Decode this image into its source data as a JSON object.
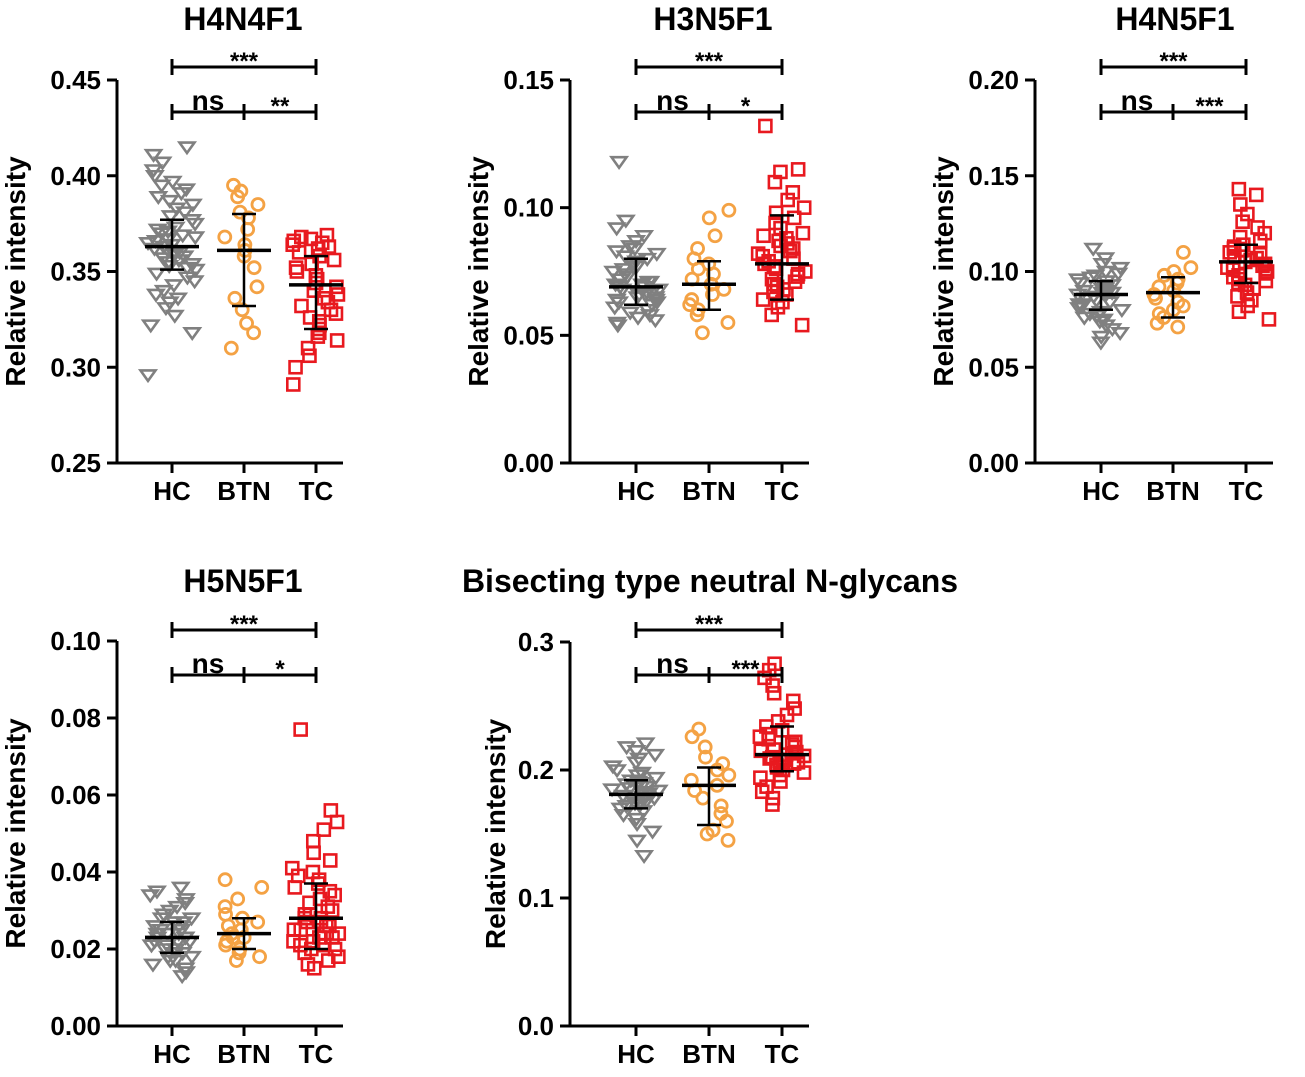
{
  "colors": {
    "HC": "#808080",
    "BTN": "#f4a244",
    "TC": "#e8191f",
    "axis": "#000000"
  },
  "chart_data": [
    {
      "type": "scatter",
      "title": "H4N4F1",
      "ylabel": "Relative intensity",
      "categories": [
        "HC",
        "BTN",
        "TC"
      ],
      "ylim": [
        0.25,
        0.45
      ],
      "yticks": [
        0.25,
        0.3,
        0.35,
        0.4,
        0.45
      ],
      "tick_labels": [
        "0.25",
        "0.30",
        "0.35",
        "0.40",
        "0.45"
      ],
      "series": [
        {
          "name": "HC",
          "marker": "triangle-down",
          "mean": 0.363,
          "sd_low": 0.351,
          "sd_high": 0.377,
          "points": [
            0.296,
            0.318,
            0.322,
            0.327,
            0.331,
            0.334,
            0.336,
            0.338,
            0.34,
            0.343,
            0.345,
            0.347,
            0.349,
            0.351,
            0.352,
            0.353,
            0.354,
            0.355,
            0.356,
            0.357,
            0.358,
            0.359,
            0.36,
            0.361,
            0.362,
            0.363,
            0.364,
            0.365,
            0.366,
            0.367,
            0.368,
            0.369,
            0.37,
            0.371,
            0.372,
            0.373,
            0.375,
            0.377,
            0.379,
            0.381,
            0.383,
            0.385,
            0.387,
            0.389,
            0.391,
            0.393,
            0.395,
            0.397,
            0.4,
            0.403,
            0.407,
            0.411,
            0.415
          ]
        },
        {
          "name": "BTN",
          "marker": "circle",
          "mean": 0.361,
          "sd_low": 0.332,
          "sd_high": 0.38,
          "points": [
            0.31,
            0.318,
            0.323,
            0.33,
            0.336,
            0.342,
            0.352,
            0.358,
            0.361,
            0.364,
            0.368,
            0.372,
            0.378,
            0.381,
            0.385,
            0.389,
            0.392,
            0.395
          ]
        },
        {
          "name": "TC",
          "marker": "square",
          "mean": 0.343,
          "sd_low": 0.32,
          "sd_high": 0.358,
          "points": [
            0.291,
            0.3,
            0.306,
            0.31,
            0.314,
            0.316,
            0.318,
            0.32,
            0.322,
            0.324,
            0.326,
            0.328,
            0.33,
            0.332,
            0.334,
            0.336,
            0.338,
            0.34,
            0.342,
            0.344,
            0.346,
            0.348,
            0.35,
            0.352,
            0.354,
            0.356,
            0.358,
            0.36,
            0.362,
            0.363,
            0.364,
            0.365,
            0.366,
            0.367,
            0.368,
            0.369
          ]
        }
      ],
      "brackets": [
        {
          "from": "HC",
          "to": "TC",
          "label": "***",
          "level": 2
        },
        {
          "from": "HC",
          "to": "BTN",
          "label": "ns",
          "level": 1
        },
        {
          "from": "BTN",
          "to": "TC",
          "label": "**",
          "level": 1
        }
      ]
    },
    {
      "type": "scatter",
      "title": "H3N5F1",
      "ylabel": "Relative intensity",
      "categories": [
        "HC",
        "BTN",
        "TC"
      ],
      "ylim": [
        0.0,
        0.15
      ],
      "yticks": [
        0.0,
        0.05,
        0.1,
        0.15
      ],
      "tick_labels": [
        "0.00",
        "0.05",
        "0.10",
        "0.15"
      ],
      "series": [
        {
          "name": "HC",
          "marker": "triangle-down",
          "mean": 0.069,
          "sd_low": 0.062,
          "sd_high": 0.08,
          "points": [
            0.054,
            0.055,
            0.056,
            0.057,
            0.058,
            0.059,
            0.06,
            0.061,
            0.062,
            0.063,
            0.063,
            0.064,
            0.064,
            0.065,
            0.065,
            0.066,
            0.066,
            0.067,
            0.067,
            0.068,
            0.068,
            0.069,
            0.069,
            0.07,
            0.07,
            0.071,
            0.071,
            0.072,
            0.073,
            0.074,
            0.075,
            0.076,
            0.077,
            0.078,
            0.079,
            0.08,
            0.081,
            0.082,
            0.083,
            0.084,
            0.085,
            0.087,
            0.089,
            0.092,
            0.095,
            0.118
          ]
        },
        {
          "name": "BTN",
          "marker": "circle",
          "mean": 0.07,
          "sd_low": 0.06,
          "sd_high": 0.079,
          "points": [
            0.051,
            0.055,
            0.058,
            0.06,
            0.062,
            0.064,
            0.066,
            0.068,
            0.07,
            0.072,
            0.074,
            0.076,
            0.078,
            0.08,
            0.084,
            0.089,
            0.096,
            0.099
          ]
        },
        {
          "name": "TC",
          "marker": "square",
          "mean": 0.078,
          "sd_low": 0.064,
          "sd_high": 0.097,
          "points": [
            0.054,
            0.058,
            0.061,
            0.063,
            0.064,
            0.066,
            0.067,
            0.068,
            0.069,
            0.07,
            0.071,
            0.072,
            0.073,
            0.074,
            0.075,
            0.076,
            0.077,
            0.078,
            0.079,
            0.08,
            0.081,
            0.082,
            0.083,
            0.084,
            0.085,
            0.086,
            0.087,
            0.088,
            0.089,
            0.09,
            0.092,
            0.094,
            0.096,
            0.098,
            0.1,
            0.103,
            0.106,
            0.11,
            0.114,
            0.115,
            0.132
          ]
        }
      ],
      "brackets": [
        {
          "from": "HC",
          "to": "TC",
          "label": "***",
          "level": 2
        },
        {
          "from": "HC",
          "to": "BTN",
          "label": "ns",
          "level": 1
        },
        {
          "from": "BTN",
          "to": "TC",
          "label": "*",
          "level": 1
        }
      ]
    },
    {
      "type": "scatter",
      "title": "H4N5F1",
      "ylabel": "Relative intensity",
      "categories": [
        "HC",
        "BTN",
        "TC"
      ],
      "ylim": [
        0.0,
        0.2
      ],
      "yticks": [
        0.0,
        0.05,
        0.1,
        0.15,
        0.2
      ],
      "tick_labels": [
        "0.00",
        "0.05",
        "0.10",
        "0.15",
        "0.20"
      ],
      "series": [
        {
          "name": "HC",
          "marker": "triangle-down",
          "mean": 0.088,
          "sd_low": 0.08,
          "sd_high": 0.095,
          "points": [
            0.063,
            0.066,
            0.068,
            0.07,
            0.072,
            0.074,
            0.075,
            0.076,
            0.077,
            0.078,
            0.079,
            0.08,
            0.081,
            0.082,
            0.083,
            0.084,
            0.085,
            0.086,
            0.087,
            0.088,
            0.088,
            0.089,
            0.089,
            0.09,
            0.09,
            0.091,
            0.091,
            0.092,
            0.093,
            0.094,
            0.095,
            0.096,
            0.097,
            0.098,
            0.099,
            0.1,
            0.102,
            0.104,
            0.107,
            0.112
          ]
        },
        {
          "name": "BTN",
          "marker": "circle",
          "mean": 0.089,
          "sd_low": 0.076,
          "sd_high": 0.097,
          "points": [
            0.071,
            0.073,
            0.076,
            0.078,
            0.08,
            0.082,
            0.084,
            0.086,
            0.088,
            0.09,
            0.092,
            0.094,
            0.096,
            0.098,
            0.1,
            0.102,
            0.11
          ]
        },
        {
          "name": "TC",
          "marker": "square",
          "mean": 0.105,
          "sd_low": 0.094,
          "sd_high": 0.114,
          "points": [
            0.075,
            0.079,
            0.082,
            0.085,
            0.087,
            0.089,
            0.091,
            0.093,
            0.094,
            0.095,
            0.096,
            0.097,
            0.098,
            0.099,
            0.1,
            0.101,
            0.102,
            0.103,
            0.104,
            0.105,
            0.106,
            0.107,
            0.108,
            0.109,
            0.11,
            0.111,
            0.112,
            0.113,
            0.114,
            0.116,
            0.118,
            0.12,
            0.123,
            0.126,
            0.13,
            0.135,
            0.14,
            0.143
          ]
        }
      ],
      "brackets": [
        {
          "from": "HC",
          "to": "TC",
          "label": "***",
          "level": 2
        },
        {
          "from": "HC",
          "to": "BTN",
          "label": "ns",
          "level": 1
        },
        {
          "from": "BTN",
          "to": "TC",
          "label": "***",
          "level": 1
        }
      ]
    },
    {
      "type": "scatter",
      "title": "H5N5F1",
      "ylabel": "Relative intensity",
      "categories": [
        "HC",
        "BTN",
        "TC"
      ],
      "ylim": [
        0.0,
        0.1
      ],
      "yticks": [
        0.0,
        0.02,
        0.04,
        0.06,
        0.08,
        0.1
      ],
      "tick_labels": [
        "0.00",
        "0.02",
        "0.04",
        "0.06",
        "0.08",
        "0.10"
      ],
      "series": [
        {
          "name": "HC",
          "marker": "triangle-down",
          "mean": 0.023,
          "sd_low": 0.019,
          "sd_high": 0.027,
          "points": [
            0.013,
            0.014,
            0.015,
            0.016,
            0.017,
            0.017,
            0.018,
            0.018,
            0.019,
            0.019,
            0.02,
            0.02,
            0.021,
            0.021,
            0.022,
            0.022,
            0.022,
            0.023,
            0.023,
            0.023,
            0.024,
            0.024,
            0.024,
            0.025,
            0.025,
            0.026,
            0.026,
            0.027,
            0.027,
            0.028,
            0.028,
            0.029,
            0.03,
            0.031,
            0.032,
            0.033,
            0.034,
            0.035,
            0.036
          ]
        },
        {
          "name": "BTN",
          "marker": "circle",
          "mean": 0.024,
          "sd_low": 0.02,
          "sd_high": 0.028,
          "points": [
            0.017,
            0.018,
            0.019,
            0.02,
            0.021,
            0.022,
            0.023,
            0.023,
            0.024,
            0.025,
            0.026,
            0.027,
            0.028,
            0.029,
            0.031,
            0.033,
            0.036,
            0.038
          ]
        },
        {
          "name": "TC",
          "marker": "square",
          "mean": 0.028,
          "sd_low": 0.02,
          "sd_high": 0.037,
          "points": [
            0.015,
            0.016,
            0.017,
            0.018,
            0.019,
            0.02,
            0.02,
            0.021,
            0.021,
            0.022,
            0.022,
            0.023,
            0.023,
            0.024,
            0.024,
            0.025,
            0.025,
            0.026,
            0.026,
            0.027,
            0.027,
            0.028,
            0.028,
            0.029,
            0.029,
            0.03,
            0.031,
            0.032,
            0.033,
            0.034,
            0.035,
            0.036,
            0.037,
            0.038,
            0.039,
            0.04,
            0.041,
            0.043,
            0.045,
            0.048,
            0.051,
            0.053,
            0.056,
            0.077
          ]
        }
      ],
      "brackets": [
        {
          "from": "HC",
          "to": "TC",
          "label": "***",
          "level": 2
        },
        {
          "from": "HC",
          "to": "BTN",
          "label": "ns",
          "level": 1
        },
        {
          "from": "BTN",
          "to": "TC",
          "label": "*",
          "level": 1
        }
      ]
    },
    {
      "type": "scatter",
      "title": "Bisecting type neutral N-glycans",
      "ylabel": "Relative intensity",
      "categories": [
        "HC",
        "BTN",
        "TC"
      ],
      "ylim": [
        0.0,
        0.3
      ],
      "yticks": [
        0.0,
        0.1,
        0.2,
        0.3
      ],
      "tick_labels": [
        "0.0",
        "0.1",
        "0.2",
        "0.3"
      ],
      "series": [
        {
          "name": "HC",
          "marker": "triangle-down",
          "mean": 0.181,
          "sd_low": 0.17,
          "sd_high": 0.192,
          "points": [
            0.133,
            0.145,
            0.152,
            0.158,
            0.162,
            0.165,
            0.168,
            0.17,
            0.172,
            0.173,
            0.174,
            0.175,
            0.176,
            0.177,
            0.178,
            0.179,
            0.18,
            0.181,
            0.182,
            0.183,
            0.184,
            0.185,
            0.186,
            0.187,
            0.188,
            0.189,
            0.19,
            0.191,
            0.192,
            0.194,
            0.196,
            0.198,
            0.2,
            0.203,
            0.206,
            0.209,
            0.212,
            0.215,
            0.218,
            0.221
          ]
        },
        {
          "name": "BTN",
          "marker": "circle",
          "mean": 0.188,
          "sd_low": 0.157,
          "sd_high": 0.202,
          "points": [
            0.145,
            0.15,
            0.153,
            0.16,
            0.166,
            0.172,
            0.178,
            0.184,
            0.188,
            0.192,
            0.196,
            0.2,
            0.205,
            0.21,
            0.218,
            0.226,
            0.232
          ]
        },
        {
          "name": "TC",
          "marker": "square",
          "mean": 0.212,
          "sd_low": 0.199,
          "sd_high": 0.234,
          "points": [
            0.173,
            0.178,
            0.183,
            0.187,
            0.191,
            0.194,
            0.196,
            0.198,
            0.2,
            0.202,
            0.204,
            0.205,
            0.206,
            0.207,
            0.208,
            0.209,
            0.21,
            0.211,
            0.212,
            0.213,
            0.214,
            0.215,
            0.216,
            0.218,
            0.22,
            0.222,
            0.224,
            0.226,
            0.228,
            0.231,
            0.234,
            0.238,
            0.243,
            0.248,
            0.254,
            0.26,
            0.266,
            0.272,
            0.278,
            0.283
          ]
        }
      ],
      "brackets": [
        {
          "from": "HC",
          "to": "TC",
          "label": "***",
          "level": 2
        },
        {
          "from": "HC",
          "to": "BTN",
          "label": "ns",
          "level": 1
        },
        {
          "from": "BTN",
          "to": "TC",
          "label": "***",
          "level": 1
        }
      ]
    }
  ]
}
